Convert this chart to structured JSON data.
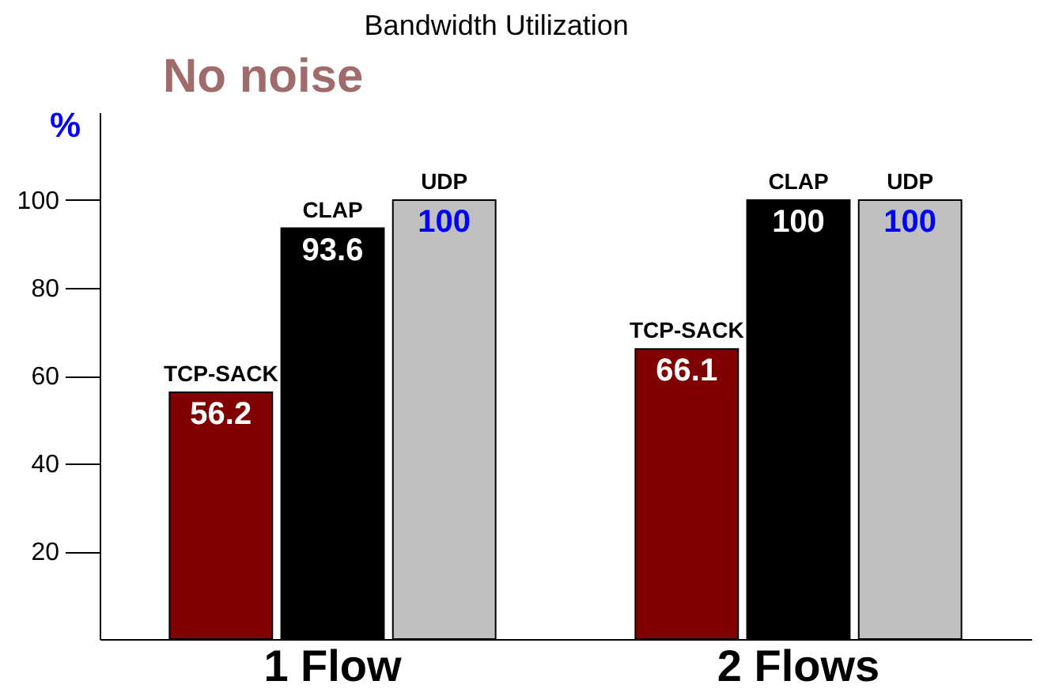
{
  "chart_data": {
    "type": "bar",
    "title": "Bandwidth Utilization",
    "ylabel": "%",
    "annotations": [
      "No noise"
    ],
    "categories": [
      "1 Flow",
      "2 Flows"
    ],
    "series": [
      {
        "name": "TCP-SACK",
        "color": "#800000",
        "values": [
          56.2,
          66.1
        ]
      },
      {
        "name": "CLAP",
        "color": "#000000",
        "values": [
          93.6,
          100
        ]
      },
      {
        "name": "UDP",
        "color": "#c0c0c0",
        "values": [
          100,
          100
        ]
      }
    ],
    "ylim": [
      0,
      120
    ],
    "yticks": [
      20,
      40,
      60,
      80,
      100
    ],
    "grid": false,
    "data_labels": true
  }
}
